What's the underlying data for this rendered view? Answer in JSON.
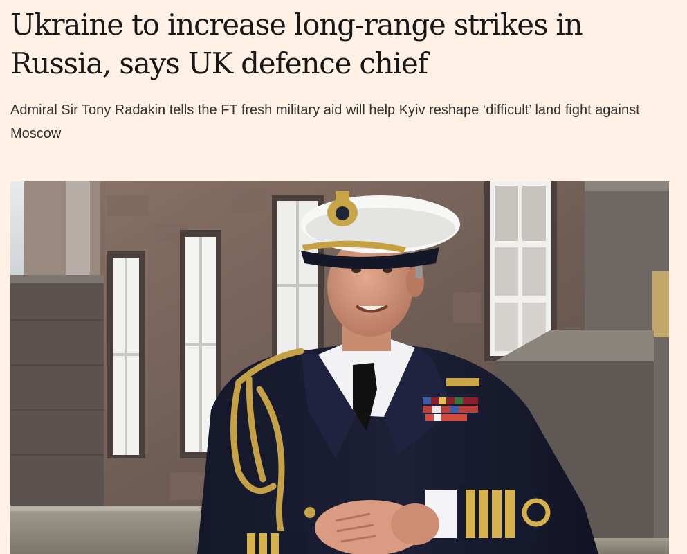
{
  "article": {
    "headline": "Ukraine to increase long-range strikes in Russia, says UK defence chief",
    "standfirst": "Admiral Sir Tony Radakin tells the FT fresh military aid will help Kyiv reshape ‘difficult’ land fight against Moscow"
  },
  "image": {
    "subject": "naval-officer-portrait"
  },
  "colors": {
    "page_background": "#fff1e5",
    "headline_text": "#1a1817",
    "standfirst_text": "#33302e"
  }
}
